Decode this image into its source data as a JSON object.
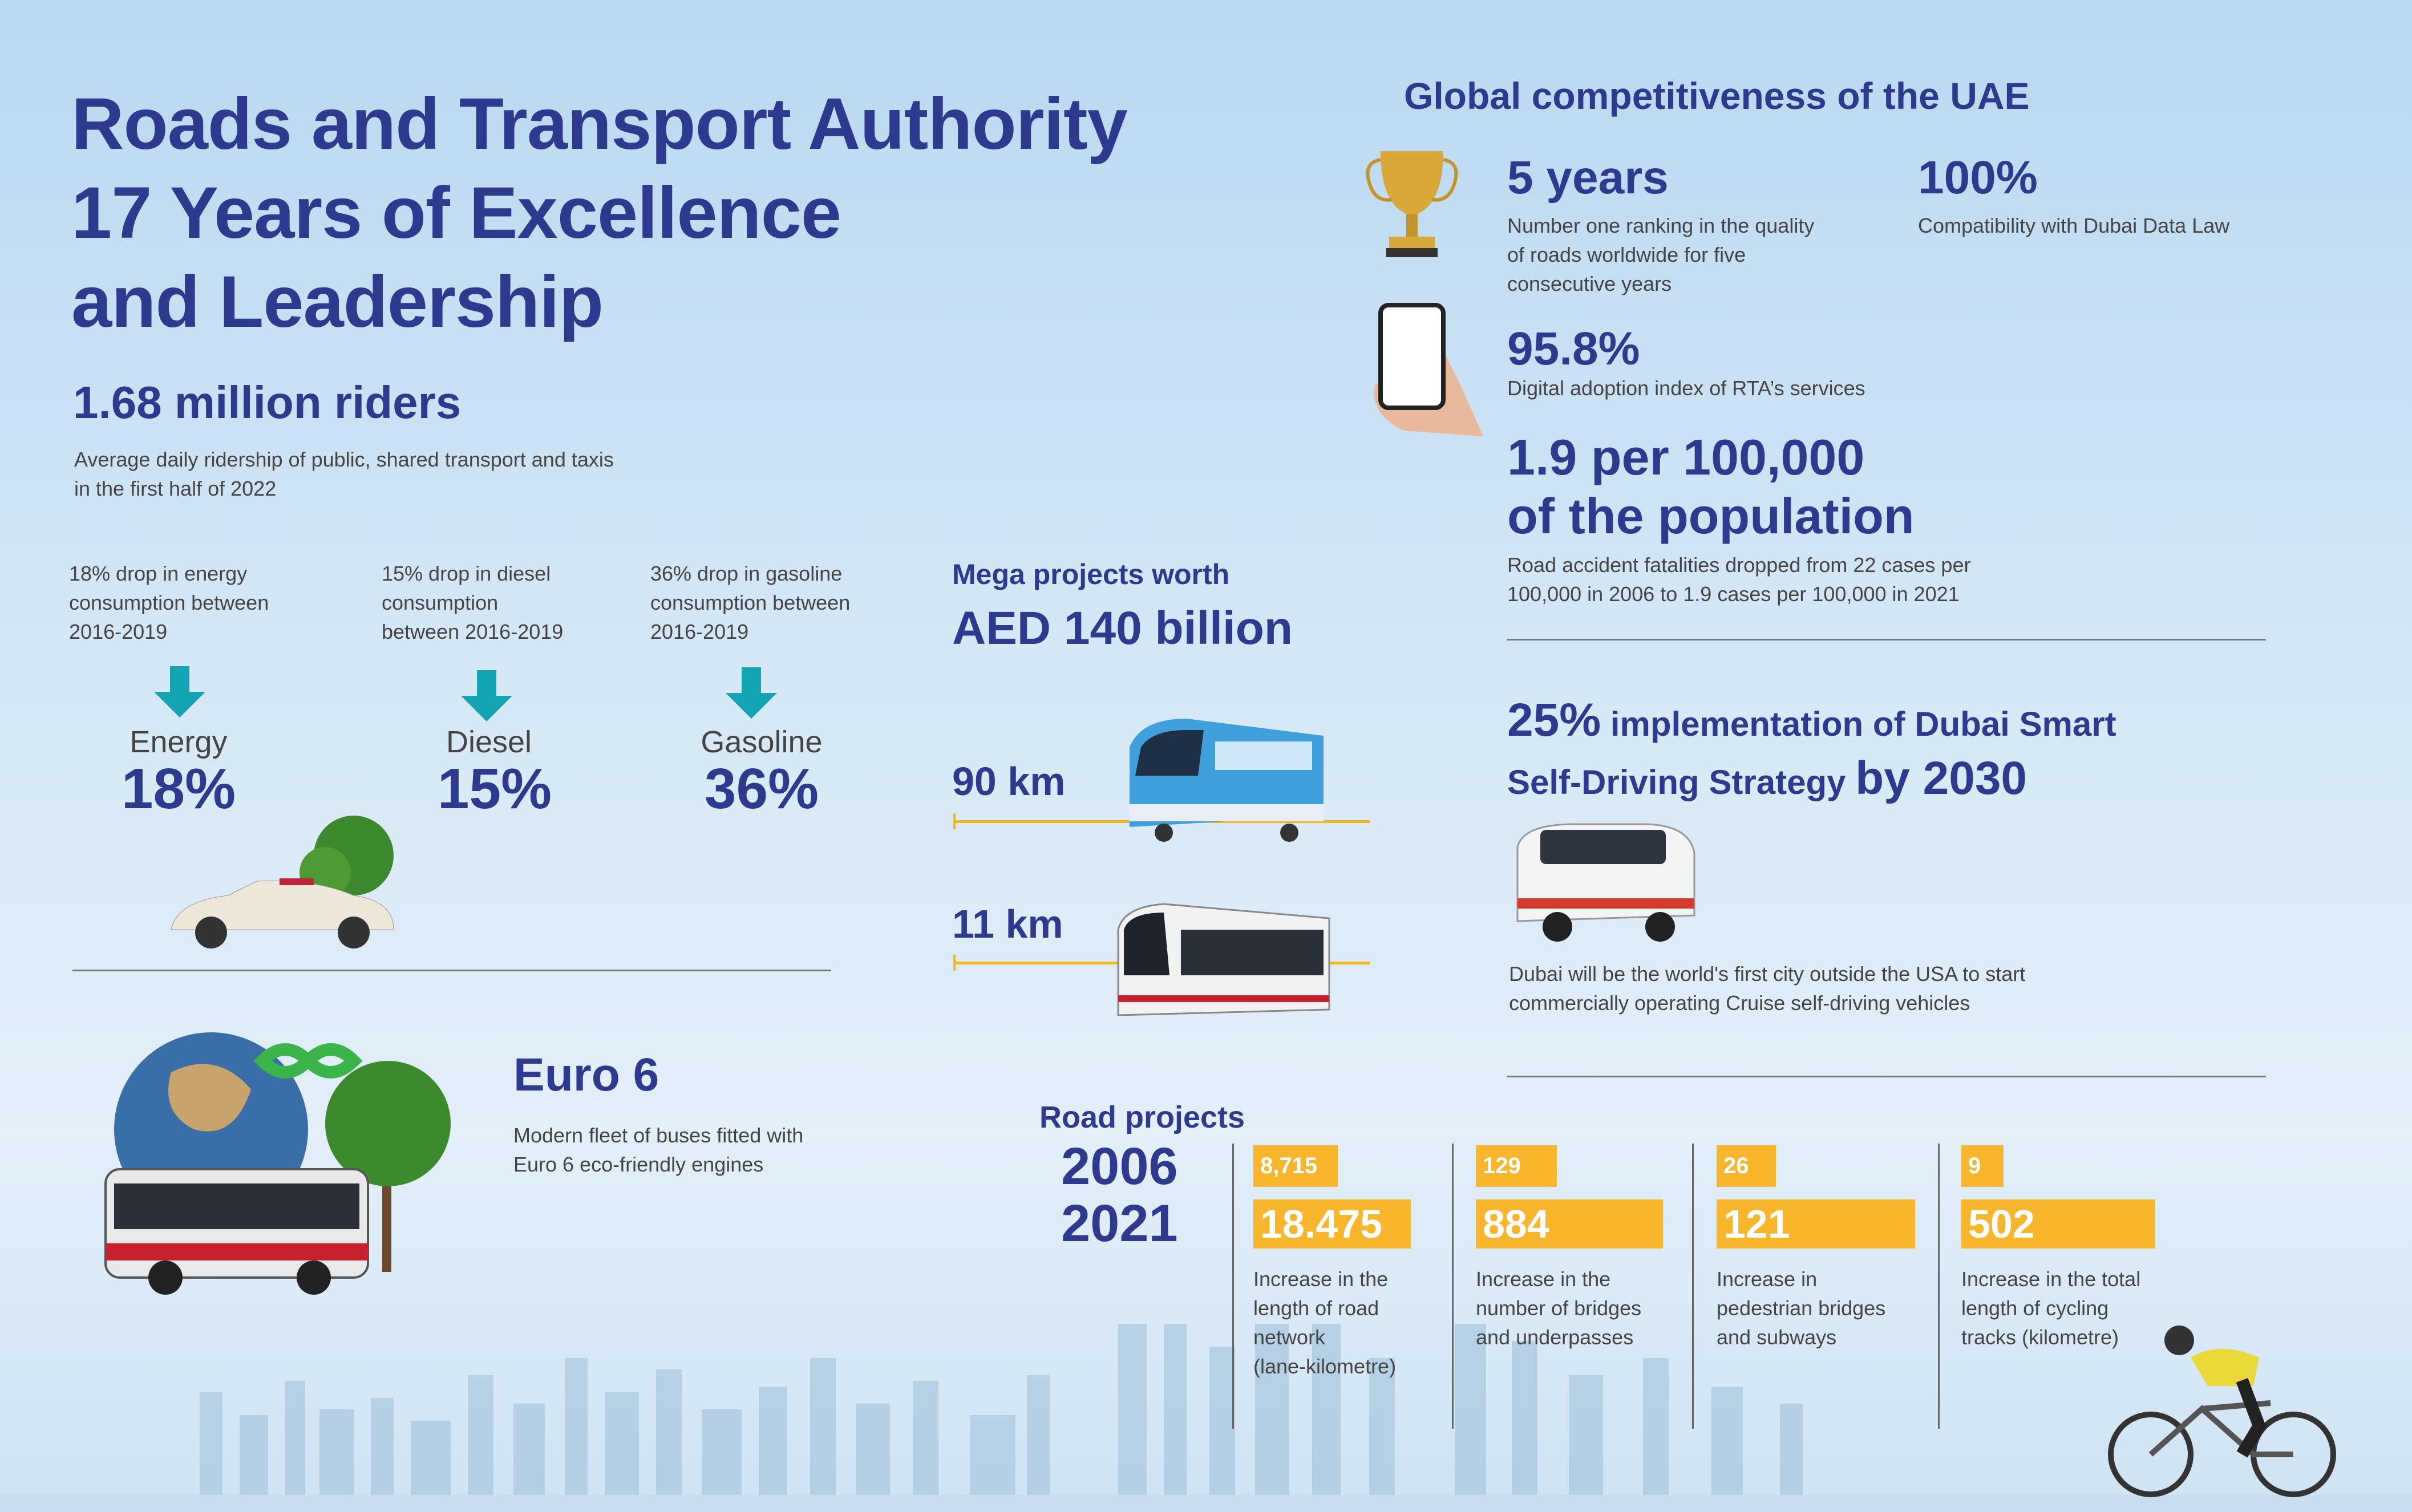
{
  "title": {
    "line1": "Roads and Transport Authority",
    "line2": "17 Years of Excellence",
    "line3": "and Leadership"
  },
  "riders": {
    "headline": "1.68 million riders",
    "desc1": "Average daily ridership of public, shared transport and taxis",
    "desc2": "in the first half of 2022"
  },
  "drops": [
    {
      "desc": [
        "18% drop in energy",
        "consumption between",
        "2016-2019"
      ],
      "label": "Energy",
      "value": "18%"
    },
    {
      "desc": [
        "15% drop in diesel",
        "consumption",
        "between 2016-2019"
      ],
      "label": "Diesel",
      "value": "15%"
    },
    {
      "desc": [
        "36% drop in gasoline",
        "consumption between",
        "2016-2019"
      ],
      "label": "Gasoline",
      "value": "36%"
    }
  ],
  "euro": {
    "title": "Euro 6",
    "desc1": "Modern fleet of buses fitted with",
    "desc2": "Euro 6 eco-friendly engines"
  },
  "mega": {
    "label": "Mega projects worth",
    "value": "AED 140 billion",
    "metro_km": "90 km",
    "tram_km": "11 km"
  },
  "global": {
    "title": "Global competitiveness of the UAE",
    "years": {
      "value": "5 years",
      "desc": [
        "Number one ranking in the quality",
        "of roads worldwide for five",
        "consecutive years"
      ]
    },
    "compat": {
      "value": "100%",
      "desc": "Compatibility with Dubai Data Law"
    },
    "digital": {
      "value": "95.8%",
      "desc": "Digital adoption index of RTA’s services"
    },
    "fatal": {
      "value1": "1.9 per 100,000",
      "value2": "of the population",
      "desc": [
        "Road accident fatalities dropped from 22 cases per",
        "100,000 in 2006 to 1.9 cases per 100,000 in 2021"
      ]
    }
  },
  "selfdriving": {
    "pct": "25%",
    "line1": " implementation of Dubai Smart",
    "line2": "Self-Driving Strategy ",
    "by": "by 2030",
    "desc": [
      "Dubai will be the world's first city outside the USA to start",
      "commercially operating Cruise self-driving vehicles"
    ]
  },
  "road": {
    "title": "Road projects",
    "year1": "2006",
    "year2": "2021",
    "items": [
      {
        "v2006": "8,715",
        "v2021": "18.475",
        "desc": [
          "Increase in the",
          "length of road",
          "network",
          "(lane-kilometre)"
        ]
      },
      {
        "v2006": "129",
        "v2021": "884",
        "desc": [
          "Increase in the",
          "number of bridges",
          "and underpasses"
        ]
      },
      {
        "v2006": "26",
        "v2021": "121",
        "desc": [
          "Increase in",
          "pedestrian bridges",
          "and subways"
        ]
      },
      {
        "v2006": "9",
        "v2021": "502",
        "desc": [
          "Increase in the total",
          "length of cycling",
          "tracks (kilometre)"
        ]
      }
    ]
  },
  "colors": {
    "navy": "#2d3a8e",
    "orange": "#f8b62d",
    "teal": "#14a5b5"
  }
}
